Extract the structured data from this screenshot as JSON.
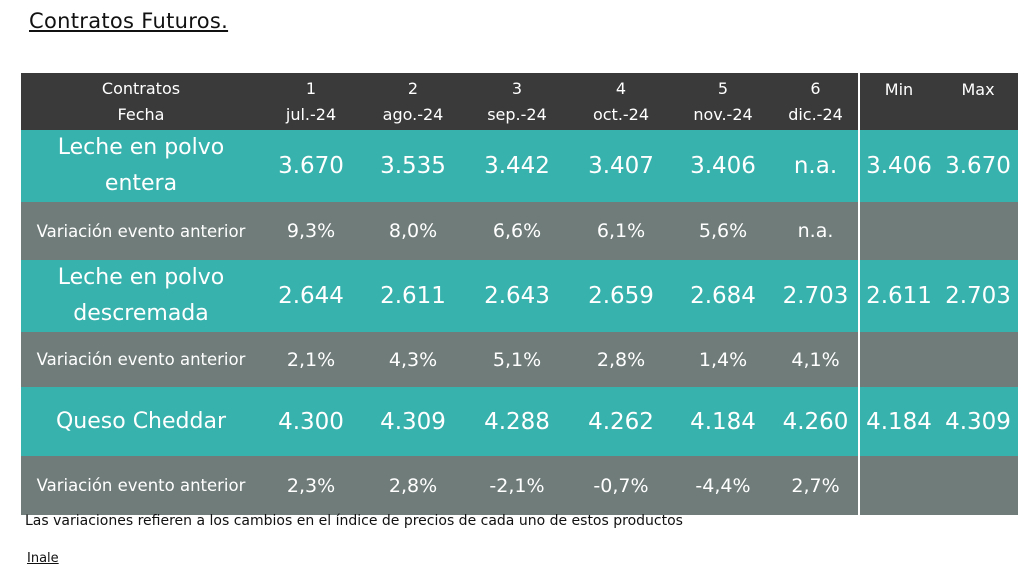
{
  "title": "Contratos Futuros.",
  "header": {
    "label_line1": "Contratos",
    "label_line2": "Fecha",
    "columns": [
      {
        "num": "1",
        "date": "jul.-24"
      },
      {
        "num": "2",
        "date": "ago.-24"
      },
      {
        "num": "3",
        "date": "sep.-24"
      },
      {
        "num": "4",
        "date": "oct.-24"
      },
      {
        "num": "5",
        "date": "nov.-24"
      },
      {
        "num": "6",
        "date": "dic.-24"
      }
    ],
    "min_label": "Min",
    "max_label": "Max"
  },
  "rows": [
    {
      "product_line1": "Leche en polvo",
      "product_line2": "entera",
      "values": [
        "3.670",
        "3.535",
        "3.442",
        "3.407",
        "3.406",
        "n.a."
      ],
      "min": "3.406",
      "max": "3.670",
      "variation_label": "Variación evento anterior",
      "variations": [
        "9,3%",
        "8,0%",
        "6,6%",
        "6,1%",
        "5,6%",
        "n.a."
      ]
    },
    {
      "product_line1": "Leche en polvo",
      "product_line2": "descremada",
      "values": [
        "2.644",
        "2.611",
        "2.643",
        "2.659",
        "2.684",
        "2.703"
      ],
      "min": "2.611",
      "max": "2.703",
      "variation_label": "Variación evento anterior",
      "variations": [
        "2,1%",
        "4,3%",
        "5,1%",
        "2,8%",
        "1,4%",
        "4,1%"
      ]
    },
    {
      "product_line1": "Queso Cheddar",
      "product_line2": "",
      "values": [
        "4.300",
        "4.309",
        "4.288",
        "4.262",
        "4.184",
        "4.260"
      ],
      "min": "4.184",
      "max": "4.309",
      "variation_label": "Variación evento anterior",
      "variations": [
        "2,3%",
        "2,8%",
        "-2,1%",
        "-0,7%",
        "-4,4%",
        "2,7%"
      ]
    }
  ],
  "note": "Las variaciones refieren a los cambios en el índice de precios de cada uno de estos productos",
  "source": "Inale",
  "colors": {
    "header_bg": "#3a3a3a",
    "product_row_bg": "#37b2ad",
    "variation_row_bg": "#6f7c7a"
  }
}
